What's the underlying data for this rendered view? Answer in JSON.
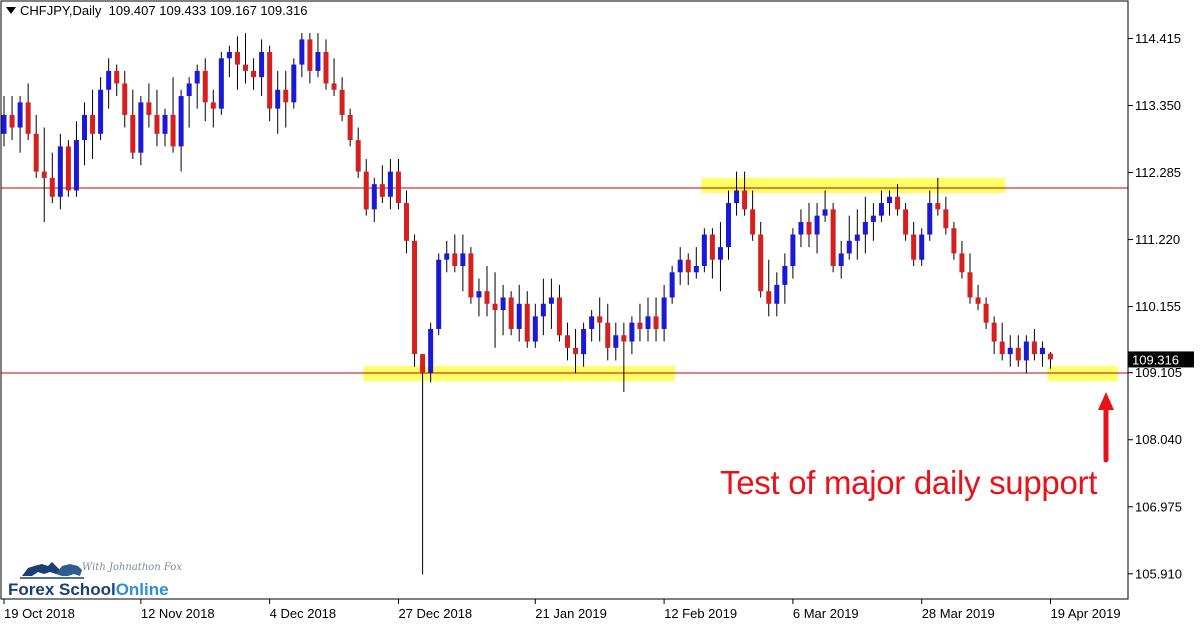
{
  "header": {
    "symbol": "CHFJPY,Daily",
    "ohlc": "109.407 109.433 109.167 109.316"
  },
  "annotation": {
    "text": "Test of major daily support",
    "color": "#e8121b"
  },
  "logo": {
    "tagline": "With Johnathon Fox",
    "name_part1": "Forex School",
    "name_part2": "Online"
  },
  "colors": {
    "bull_candle": "#1a1ad6",
    "bear_candle": "#d62020",
    "level_line": "#cc0000",
    "highlight_zone": "#ffff66",
    "current_price_box": "#000000"
  },
  "chart_data": {
    "type": "candlestick",
    "title": "CHFJPY,Daily",
    "current_price": "109.316",
    "ylim": [
      105.51,
      115.01
    ],
    "y_ticks": [
      "114.415",
      "113.350",
      "112.285",
      "111.220",
      "110.155",
      "109.105",
      "108.040",
      "106.975",
      "105.910"
    ],
    "x_ticks": [
      {
        "label": "19 Oct 2018",
        "index": 0
      },
      {
        "label": "12 Nov 2018",
        "index": 17
      },
      {
        "label": "4 Dec 2018",
        "index": 33
      },
      {
        "label": "27 Dec 2018",
        "index": 49
      },
      {
        "label": "21 Jan 2019",
        "index": 66
      },
      {
        "label": "12 Feb 2019",
        "index": 82
      },
      {
        "label": "6 Mar 2019",
        "index": 98
      },
      {
        "label": "28 Mar 2019",
        "index": 114
      },
      {
        "label": "19 Apr 2019",
        "index": 130
      }
    ],
    "levels": [
      {
        "name": "resistance",
        "price": 112.04
      },
      {
        "name": "support",
        "price": 109.1
      }
    ],
    "zones": [
      {
        "from_index": 87,
        "to_index": 124,
        "low": 111.96,
        "high": 112.2
      },
      {
        "from_index": 45,
        "to_index": 83,
        "low": 108.97,
        "high": 109.21
      },
      {
        "from_index": 130,
        "to_index": 138,
        "low": 108.97,
        "high": 109.21
      }
    ],
    "candles": [
      [
        112.9,
        113.5,
        112.7,
        113.2
      ],
      [
        113.2,
        113.5,
        112.8,
        113.0
      ],
      [
        113.0,
        113.5,
        112.6,
        113.4
      ],
      [
        113.4,
        113.7,
        112.8,
        112.9
      ],
      [
        112.9,
        113.2,
        112.2,
        112.3
      ],
      [
        112.3,
        113.0,
        111.5,
        112.2
      ],
      [
        112.2,
        112.6,
        111.8,
        111.9
      ],
      [
        111.9,
        112.9,
        111.7,
        112.7
      ],
      [
        112.7,
        112.8,
        111.9,
        112.0
      ],
      [
        112.0,
        113.1,
        111.9,
        112.8
      ],
      [
        112.8,
        113.4,
        112.4,
        113.2
      ],
      [
        113.2,
        113.6,
        112.5,
        112.9
      ],
      [
        112.9,
        113.8,
        112.8,
        113.6
      ],
      [
        113.6,
        114.1,
        113.3,
        113.9
      ],
      [
        113.9,
        114.0,
        113.5,
        113.7
      ],
      [
        113.7,
        113.9,
        113.0,
        113.2
      ],
      [
        113.2,
        113.6,
        112.5,
        112.6
      ],
      [
        112.6,
        113.5,
        112.4,
        113.4
      ],
      [
        113.4,
        113.7,
        113.0,
        113.2
      ],
      [
        113.2,
        113.6,
        112.7,
        112.9
      ],
      [
        112.9,
        113.3,
        112.7,
        113.2
      ],
      [
        113.2,
        113.8,
        112.6,
        112.7
      ],
      [
        112.7,
        113.6,
        112.3,
        113.5
      ],
      [
        113.5,
        113.8,
        113.0,
        113.7
      ],
      [
        113.7,
        114.0,
        113.3,
        113.9
      ],
      [
        113.9,
        114.1,
        113.1,
        113.4
      ],
      [
        113.4,
        113.6,
        113.0,
        113.3
      ],
      [
        113.3,
        114.2,
        113.2,
        114.1
      ],
      [
        114.1,
        114.3,
        113.8,
        114.2
      ],
      [
        114.2,
        114.45,
        113.6,
        114.0
      ],
      [
        114.0,
        114.5,
        113.7,
        113.9
      ],
      [
        113.9,
        114.1,
        113.6,
        113.8
      ],
      [
        113.8,
        114.4,
        113.5,
        114.2
      ],
      [
        114.2,
        114.3,
        113.1,
        113.3
      ],
      [
        113.3,
        113.9,
        112.9,
        113.6
      ],
      [
        113.6,
        113.9,
        113.0,
        113.4
      ],
      [
        113.4,
        114.1,
        113.3,
        114.0
      ],
      [
        114.0,
        114.5,
        113.8,
        114.4
      ],
      [
        114.4,
        114.5,
        113.7,
        113.9
      ],
      [
        113.9,
        114.5,
        113.8,
        114.2
      ],
      [
        114.2,
        114.4,
        113.6,
        113.7
      ],
      [
        113.7,
        114.1,
        113.5,
        113.6
      ],
      [
        113.6,
        113.8,
        113.1,
        113.2
      ],
      [
        113.2,
        113.3,
        112.7,
        112.8
      ],
      [
        112.8,
        113.0,
        112.2,
        112.3
      ],
      [
        112.3,
        112.5,
        111.6,
        111.7
      ],
      [
        111.7,
        112.2,
        111.5,
        112.1
      ],
      [
        112.1,
        112.4,
        111.8,
        111.9
      ],
      [
        111.9,
        112.5,
        111.7,
        112.3
      ],
      [
        112.3,
        112.5,
        111.7,
        111.8
      ],
      [
        111.8,
        112.0,
        111.0,
        111.2
      ],
      [
        111.2,
        111.3,
        109.2,
        109.4
      ],
      [
        109.4,
        109.4,
        105.9,
        109.1
      ],
      [
        109.1,
        109.9,
        108.95,
        109.8
      ],
      [
        109.8,
        111.0,
        109.7,
        110.9
      ],
      [
        110.9,
        111.2,
        110.7,
        111.0
      ],
      [
        111.0,
        111.3,
        110.7,
        110.8
      ],
      [
        110.8,
        111.3,
        110.4,
        111.0
      ],
      [
        111.0,
        111.1,
        110.2,
        110.3
      ],
      [
        110.3,
        110.6,
        110.0,
        110.4
      ],
      [
        110.4,
        110.8,
        110.0,
        110.2
      ],
      [
        110.2,
        110.7,
        109.5,
        110.1
      ],
      [
        110.1,
        110.5,
        109.7,
        110.3
      ],
      [
        110.3,
        110.4,
        109.7,
        109.8
      ],
      [
        109.8,
        110.5,
        109.6,
        110.2
      ],
      [
        110.2,
        110.4,
        109.5,
        109.6
      ],
      [
        109.6,
        110.2,
        109.5,
        110.0
      ],
      [
        110.0,
        110.6,
        109.7,
        110.2
      ],
      [
        110.2,
        110.6,
        109.8,
        110.3
      ],
      [
        110.3,
        110.5,
        109.6,
        109.7
      ],
      [
        109.7,
        109.9,
        109.3,
        109.5
      ],
      [
        109.5,
        109.8,
        109.1,
        109.4
      ],
      [
        109.4,
        109.9,
        109.2,
        109.8
      ],
      [
        109.8,
        110.1,
        109.6,
        110.0
      ],
      [
        110.0,
        110.3,
        109.6,
        109.9
      ],
      [
        109.9,
        110.2,
        109.3,
        109.5
      ],
      [
        109.5,
        109.9,
        109.3,
        109.7
      ],
      [
        109.7,
        109.9,
        108.8,
        109.6
      ],
      [
        109.6,
        110.0,
        109.4,
        109.9
      ],
      [
        109.9,
        110.2,
        109.6,
        109.8
      ],
      [
        109.8,
        110.3,
        109.6,
        110.0
      ],
      [
        110.0,
        110.3,
        109.6,
        109.8
      ],
      [
        109.8,
        110.5,
        109.6,
        110.3
      ],
      [
        110.3,
        110.8,
        110.2,
        110.7
      ],
      [
        110.7,
        111.1,
        110.5,
        110.9
      ],
      [
        110.9,
        111.0,
        110.5,
        110.7
      ],
      [
        110.7,
        111.1,
        110.6,
        110.8
      ],
      [
        110.8,
        111.4,
        110.7,
        111.3
      ],
      [
        111.3,
        111.4,
        110.6,
        110.9
      ],
      [
        110.9,
        111.5,
        110.4,
        111.1
      ],
      [
        111.1,
        112.0,
        110.9,
        111.8
      ],
      [
        111.8,
        112.3,
        111.6,
        112.0
      ],
      [
        112.0,
        112.3,
        111.6,
        111.7
      ],
      [
        111.7,
        112.0,
        111.2,
        111.3
      ],
      [
        111.3,
        111.5,
        110.3,
        110.4
      ],
      [
        110.4,
        110.9,
        110.0,
        110.2
      ],
      [
        110.2,
        110.7,
        110.0,
        110.5
      ],
      [
        110.5,
        111.0,
        110.2,
        110.8
      ],
      [
        110.8,
        111.4,
        110.6,
        111.3
      ],
      [
        111.3,
        111.7,
        111.1,
        111.5
      ],
      [
        111.5,
        111.8,
        111.1,
        111.3
      ],
      [
        111.3,
        111.8,
        111.0,
        111.6
      ],
      [
        111.6,
        112.0,
        111.5,
        111.7
      ],
      [
        111.7,
        111.8,
        110.7,
        110.8
      ],
      [
        110.8,
        111.2,
        110.6,
        111.0
      ],
      [
        111.0,
        111.6,
        110.9,
        111.2
      ],
      [
        111.2,
        111.7,
        110.9,
        111.3
      ],
      [
        111.3,
        111.9,
        111.0,
        111.5
      ],
      [
        111.5,
        111.8,
        111.2,
        111.6
      ],
      [
        111.6,
        112.0,
        111.5,
        111.8
      ],
      [
        111.8,
        112.0,
        111.6,
        111.9
      ],
      [
        111.9,
        112.1,
        111.6,
        111.7
      ],
      [
        111.7,
        111.8,
        111.2,
        111.3
      ],
      [
        111.3,
        111.5,
        110.8,
        110.9
      ],
      [
        110.9,
        111.4,
        110.8,
        111.3
      ],
      [
        111.3,
        112.0,
        111.2,
        111.8
      ],
      [
        111.8,
        112.2,
        111.6,
        111.7
      ],
      [
        111.7,
        111.9,
        111.3,
        111.4
      ],
      [
        111.4,
        111.5,
        110.9,
        111.0
      ],
      [
        111.0,
        111.2,
        110.6,
        110.7
      ],
      [
        110.7,
        111.0,
        110.2,
        110.3
      ],
      [
        110.3,
        110.5,
        110.1,
        110.2
      ],
      [
        110.2,
        110.3,
        109.8,
        109.9
      ],
      [
        109.9,
        110.0,
        109.4,
        109.6
      ],
      [
        109.6,
        109.9,
        109.3,
        109.4
      ],
      [
        109.4,
        109.7,
        109.2,
        109.5
      ],
      [
        109.5,
        109.7,
        109.2,
        109.3
      ],
      [
        109.3,
        109.7,
        109.1,
        109.6
      ],
      [
        109.6,
        109.8,
        109.3,
        109.4
      ],
      [
        109.4,
        109.6,
        109.2,
        109.5
      ],
      [
        109.407,
        109.433,
        109.167,
        109.316
      ]
    ]
  }
}
